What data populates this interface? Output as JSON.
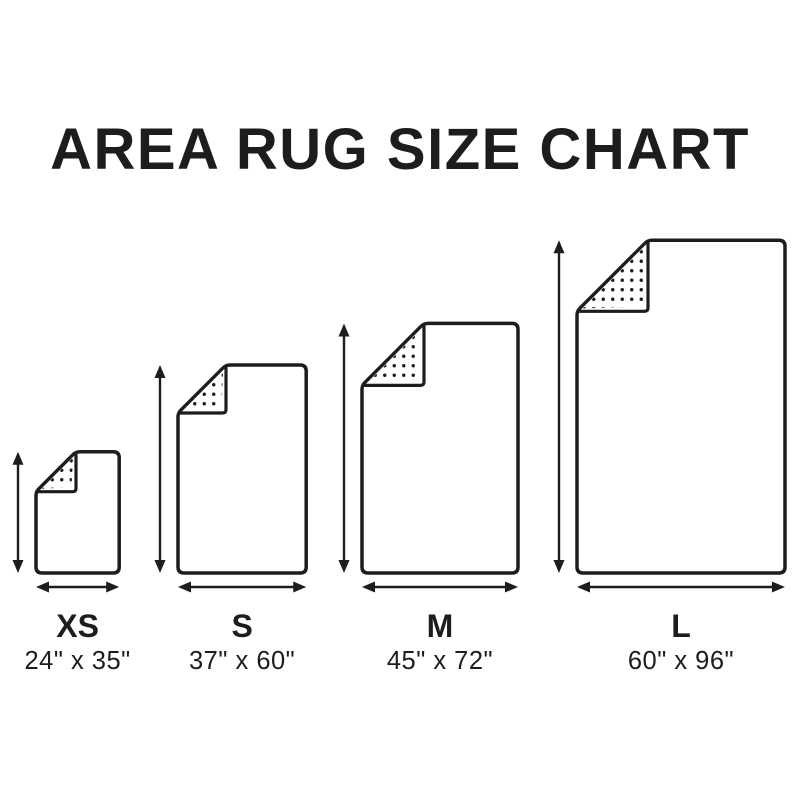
{
  "title": "AREA RUG SIZE CHART",
  "colors": {
    "ink": "#1d1d1d",
    "background": "#ffffff"
  },
  "chart_data": {
    "type": "table",
    "title": "AREA RUG SIZE CHART",
    "unit": "inches",
    "sizes": [
      {
        "code": "XS",
        "label": "24\" x 35\"",
        "width_in": 24,
        "length_in": 35
      },
      {
        "code": "S",
        "label": "37\" x 60\"",
        "width_in": 37,
        "length_in": 60
      },
      {
        "code": "M",
        "label": "45\" x 72\"",
        "width_in": 45,
        "length_in": 72
      },
      {
        "code": "L",
        "label": "60\" x 96\"",
        "width_in": 60,
        "length_in": 96
      }
    ]
  }
}
